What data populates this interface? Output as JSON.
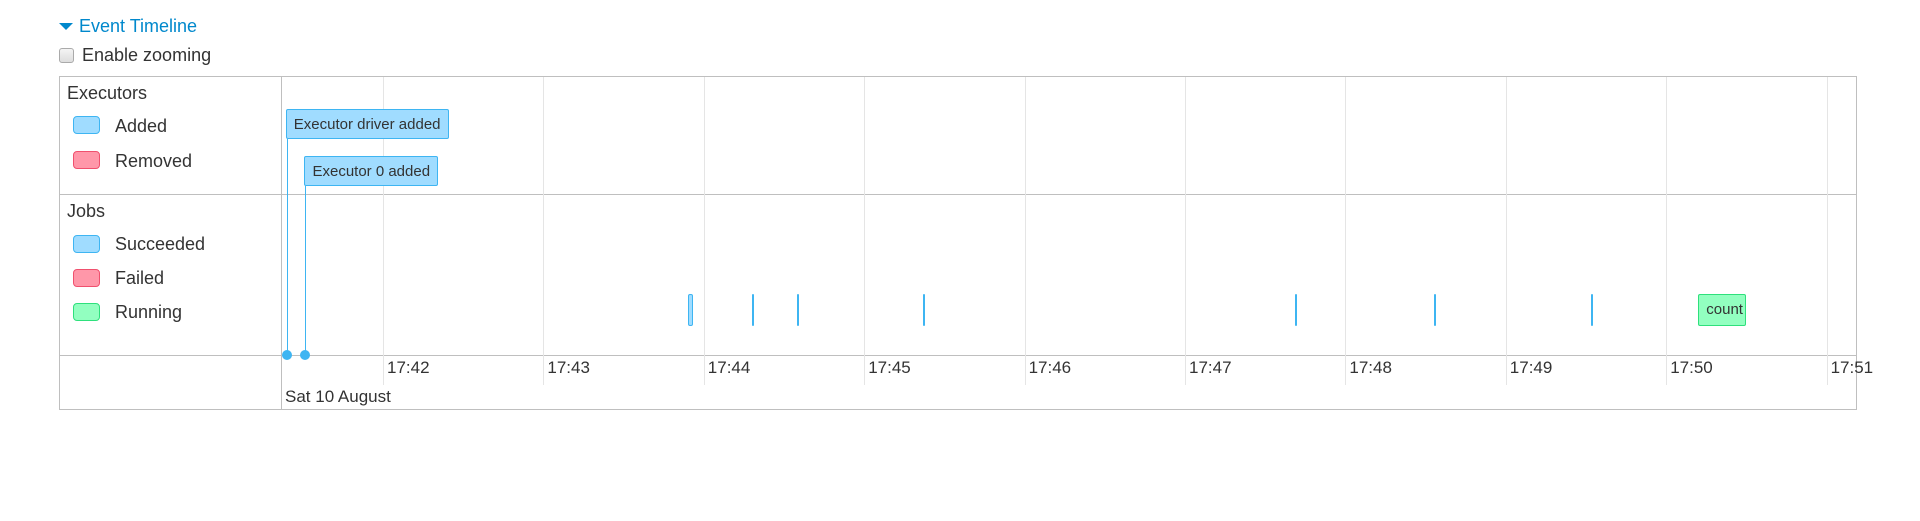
{
  "header": {
    "title": "Event Timeline",
    "zoom_label": "Enable zooming",
    "zoom_checked": false
  },
  "legend": {
    "executors": {
      "title": "Executors",
      "items": [
        {
          "label": "Added",
          "color": "#a0dcff"
        },
        {
          "label": "Removed",
          "color": "#ff97a9"
        }
      ]
    },
    "jobs": {
      "title": "Jobs",
      "items": [
        {
          "label": "Succeeded",
          "color": "#a0dcff"
        },
        {
          "label": "Failed",
          "color": "#ff97a9"
        },
        {
          "label": "Running",
          "color": "#92ffc0"
        }
      ]
    }
  },
  "axis": {
    "ticks": [
      "17:42",
      "17:43",
      "17:44",
      "17:45",
      "17:46",
      "17:47",
      "17:48",
      "17:49",
      "17:50",
      "17:51"
    ],
    "date": "Sat 10 August"
  },
  "executor_events": [
    {
      "label": "Executor driver added",
      "time": "17:41:24",
      "status": "added"
    },
    {
      "label": "Executor 0 added",
      "time": "17:41:31",
      "status": "added"
    }
  ],
  "jobs": [
    {
      "start": "17:43:54",
      "end": "17:43:56",
      "status": "succeeded"
    },
    {
      "start": "17:44:18",
      "end": "17:44:18",
      "status": "succeeded"
    },
    {
      "start": "17:44:35",
      "end": "17:44:35",
      "status": "succeeded"
    },
    {
      "start": "17:45:22",
      "end": "17:45:22",
      "status": "succeeded"
    },
    {
      "start": "17:47:41",
      "end": "17:47:42",
      "status": "succeeded"
    },
    {
      "start": "17:48:33",
      "end": "17:48:33",
      "status": "succeeded"
    },
    {
      "start": "17:49:32",
      "end": "17:49:32",
      "status": "succeeded"
    },
    {
      "start": "17:50:12",
      "end": "17:50:30",
      "status": "running",
      "label": "count"
    }
  ]
}
